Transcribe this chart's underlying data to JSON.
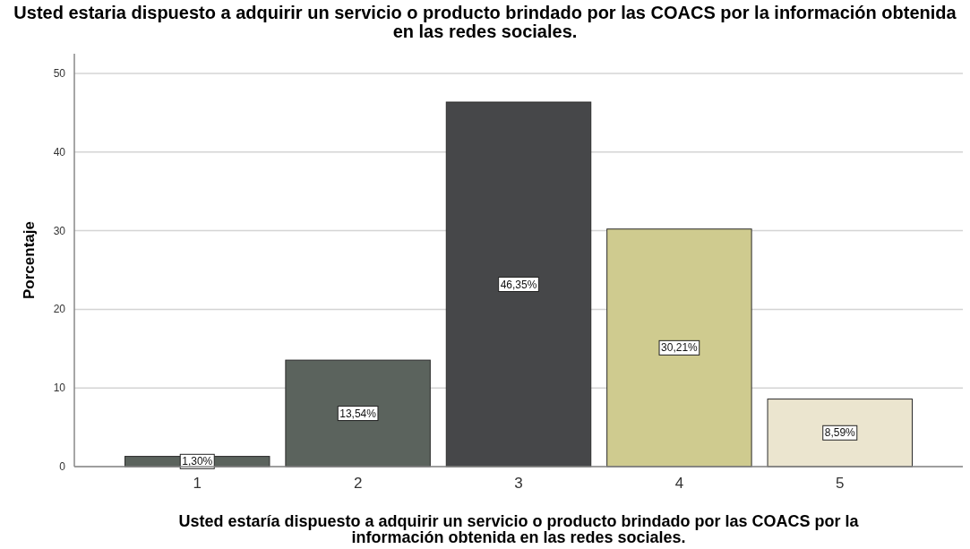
{
  "chart_data": {
    "type": "bar",
    "title": "Usted estaria dispuesto a adquirir un servicio o producto brindado por las COACS por la información obtenida en las redes sociales.",
    "xlabel": "Usted estaría dispuesto a adquirir un servicio o producto brindado por las COACS por la información obtenida en las redes sociales.",
    "ylabel": "Porcentaje",
    "categories": [
      "1",
      "2",
      "3",
      "4",
      "5"
    ],
    "values": [
      1.3,
      13.54,
      46.35,
      30.21,
      8.59
    ],
    "colors": [
      "#5b635d",
      "#5b635d",
      "#464749",
      "#cfcb8f",
      "#ebe5cf"
    ],
    "value_labels": [
      "1,30%",
      "13,54%",
      "46,35%",
      "30,21%",
      "8,59%"
    ],
    "ylim": [
      0,
      52.5
    ],
    "yticks": [
      0,
      10,
      20,
      30,
      40,
      50
    ],
    "grid": "y"
  }
}
